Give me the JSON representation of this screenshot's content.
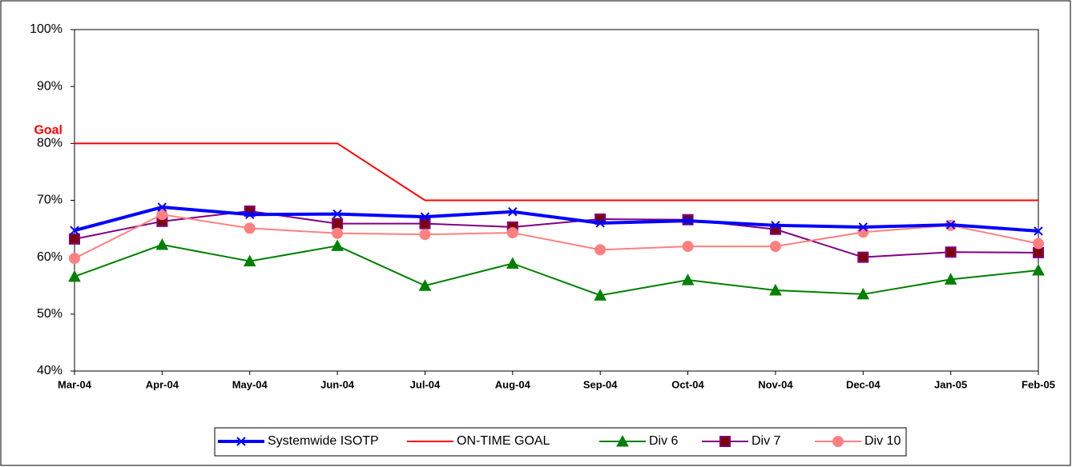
{
  "chart_data": {
    "type": "line",
    "categories": [
      "Mar-04",
      "Apr-04",
      "May-04",
      "Jun-04",
      "Jul-04",
      "Aug-04",
      "Sep-04",
      "Oct-04",
      "Nov-04",
      "Dec-04",
      "Jan-05",
      "Feb-05"
    ],
    "series": [
      {
        "name": "Systemwide ISOTP",
        "color": "#0000ff",
        "marker": "x",
        "values": [
          64.7,
          68.8,
          67.5,
          67.6,
          67.1,
          68.0,
          66.0,
          66.4,
          65.6,
          65.3,
          65.7,
          64.6
        ]
      },
      {
        "name": "ON-TIME GOAL",
        "color": "#ff0000",
        "values": [
          80,
          80,
          80,
          80,
          70,
          70,
          70,
          70,
          70,
          70,
          70,
          70
        ]
      },
      {
        "name": "Div 6",
        "color": "#008000",
        "marker": "triangle",
        "values": [
          56.6,
          62.2,
          59.3,
          62.0,
          55.0,
          58.9,
          53.3,
          56.0,
          54.2,
          53.5,
          56.1,
          57.7
        ]
      },
      {
        "name": "Div 7",
        "color": "#800080",
        "marker": "square",
        "values": [
          63.2,
          66.3,
          68.1,
          65.9,
          65.9,
          65.3,
          66.7,
          66.6,
          64.9,
          60.0,
          60.9,
          60.8
        ]
      },
      {
        "name": "Div 10",
        "color": "#ff8080",
        "marker": "circle",
        "values": [
          59.8,
          67.5,
          65.1,
          64.2,
          64.0,
          64.3,
          61.3,
          61.9,
          61.9,
          64.4,
          65.6,
          62.4
        ]
      }
    ],
    "ylim": [
      40,
      100
    ],
    "yticks": [
      {
        "value": 40,
        "label": "40%"
      },
      {
        "value": 50,
        "label": "50%"
      },
      {
        "value": 60,
        "label": "60%"
      },
      {
        "value": 70,
        "label": "70%"
      },
      {
        "value": 80,
        "label": "80%"
      },
      {
        "value": 90,
        "label": "90%"
      },
      {
        "value": 100,
        "label": "100%"
      }
    ],
    "annotation": {
      "text": "Goal",
      "color": "#ff0000"
    },
    "grid": false,
    "legend": "bottom"
  }
}
